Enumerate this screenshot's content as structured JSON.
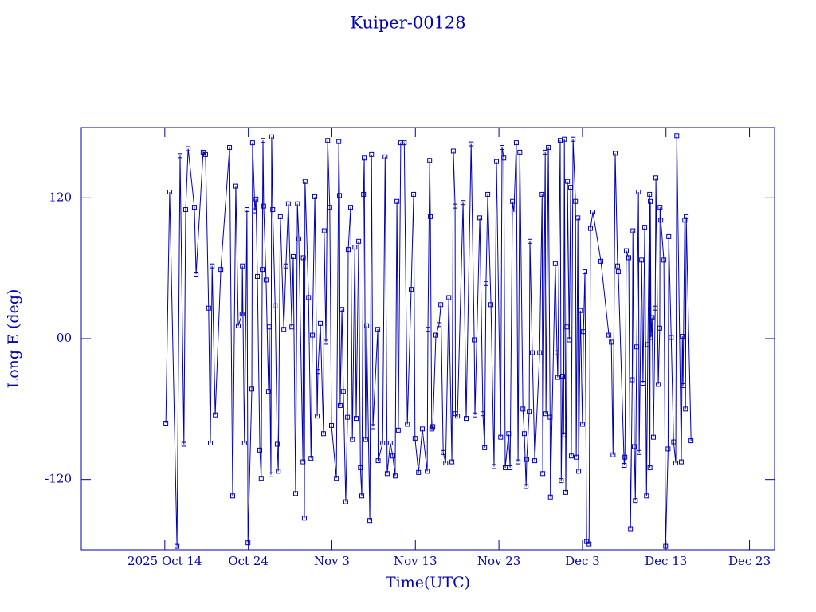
{
  "chart_data": {
    "type": "line",
    "title": "Kuiper-00128",
    "xlabel": "Time(UTC)",
    "ylabel": "Long E (deg)",
    "color": "#0000b4",
    "xlim": [
      "2025-10-04",
      "2025-12-26"
    ],
    "xticks": [
      {
        "value": "2025-10-14",
        "label": "2025 Oct 14"
      },
      {
        "value": "2025-10-24",
        "label": "Oct 24"
      },
      {
        "value": "2025-11-03",
        "label": "Nov 3"
      },
      {
        "value": "2025-11-13",
        "label": "Nov 13"
      },
      {
        "value": "2025-11-23",
        "label": "Nov 23"
      },
      {
        "value": "2025-12-03",
        "label": "Dec 3"
      },
      {
        "value": "2025-12-13",
        "label": "Dec 13"
      },
      {
        "value": "2025-12-23",
        "label": "Dec 23"
      }
    ],
    "ylim": [
      -180,
      180
    ],
    "yticks": [
      -120,
      {
        "value": 0,
        "label": "00"
      },
      120
    ],
    "x": [
      "2025-10-14 03:00",
      "2025-10-14 14:00",
      "2025-10-15 11:00",
      "2025-10-15 20:00",
      "2025-10-16 07:00",
      "2025-10-16 12:00",
      "2025-10-16 19:00",
      "2025-10-17 13:00",
      "2025-10-17 18:00",
      "2025-10-18 14:00",
      "2025-10-18 21:00",
      "2025-10-19 06:00",
      "2025-10-19 11:00",
      "2025-10-19 16:00",
      "2025-10-20 01:00",
      "2025-10-20 17:00",
      "2025-10-21 18:00",
      "2025-10-22 03:00",
      "2025-10-22 12:00",
      "2025-10-22 19:00",
      "2025-10-23 06:00",
      "2025-10-23 07:00",
      "2025-10-23 13:00",
      "2025-10-23 20:00",
      "2025-10-23 23:00",
      "2025-10-24 10:00",
      "2025-10-24 12:00",
      "2025-10-24 19:00",
      "2025-10-24 22:00",
      "2025-10-25 02:00",
      "2025-10-25 09:00",
      "2025-10-25 13:00",
      "2025-10-25 16:00",
      "2025-10-25 18:00",
      "2025-10-25 20:00",
      "2025-10-26 03:00",
      "2025-10-26 10:00",
      "2025-10-26 12:00",
      "2025-10-26 17:00",
      "2025-10-26 19:00",
      "2025-10-26 22:00",
      "2025-10-27 05:00",
      "2025-10-27 11:00",
      "2025-10-27 14:00",
      "2025-10-27 20:00",
      "2025-10-28 06:00",
      "2025-10-28 12:00",
      "2025-10-28 19:00",
      "2025-10-29 05:00",
      "2025-10-29 09:00",
      "2025-10-29 16:00",
      "2025-10-29 21:00",
      "2025-10-30 01:00",
      "2025-10-30 13:00",
      "2025-10-30 14:00",
      "2025-10-30 17:00",
      "2025-10-30 19:00",
      "2025-10-31 05:00",
      "2025-10-31 12:00",
      "2025-10-31 16:00",
      "2025-10-31 23:00",
      "2025-11-01 06:00",
      "2025-11-01 08:00",
      "2025-11-01 15:00",
      "2025-11-02 00:00",
      "2025-11-02 02:00",
      "2025-11-02 07:00",
      "2025-11-02 12:00",
      "2025-11-02 18:00",
      "2025-11-02 23:00",
      "2025-11-03 13:00",
      "2025-11-03 20:00",
      "2025-11-03 22:00",
      "2025-11-04 00:00",
      "2025-11-04 05:00",
      "2025-11-04 09:00",
      "2025-11-04 16:00",
      "2025-11-04 21:00",
      "2025-11-04 23:00",
      "2025-11-05 06:00",
      "2025-11-05 11:00",
      "2025-11-05 18:00",
      "2025-11-05 22:00",
      "2025-11-06 05:00",
      "2025-11-06 10:00",
      "2025-11-06 14:00",
      "2025-11-06 19:00",
      "2025-11-06 21:00",
      "2025-11-07 01:00",
      "2025-11-07 04:00",
      "2025-11-07 13:00",
      "2025-11-07 18:00",
      "2025-11-07 22:00",
      "2025-11-08 12:00",
      "2025-11-08 13:00",
      "2025-11-09 02:00",
      "2025-11-09 09:00",
      "2025-11-09 15:00",
      "2025-11-10 00:00",
      "2025-11-10 07:00",
      "2025-11-10 14:00",
      "2025-11-10 19:00",
      "2025-11-10 23:00",
      "2025-11-11 06:00",
      "2025-11-11 16:00",
      "2025-11-12 01:00",
      "2025-11-12 12:00",
      "2025-11-12 19:00",
      "2025-11-12 23:00",
      "2025-11-13 09:00",
      "2025-11-13 20:00",
      "2025-11-14 10:00",
      "2025-11-14 12:00",
      "2025-11-14 17:00",
      "2025-11-14 19:00",
      "2025-11-14 23:00",
      "2025-11-15 02:00",
      "2025-11-15 11:00",
      "2025-11-15 20:00",
      "2025-11-16 01:00",
      "2025-11-16 08:00",
      "2025-11-16 15:00",
      "2025-11-17 00:00",
      "2025-11-17 09:00",
      "2025-11-17 13:00",
      "2025-11-17 18:00",
      "2025-11-17 19:00",
      "2025-11-18 01:00",
      "2025-11-18 17:00",
      "2025-11-19 02:00",
      "2025-11-19 16:00",
      "2025-11-20 01:00",
      "2025-11-20 03:00",
      "2025-11-20 17:00",
      "2025-11-21 02:00",
      "2025-11-21 07:00",
      "2025-11-21 11:00",
      "2025-11-21 16:00",
      "2025-11-22 01:00",
      "2025-11-22 10:00",
      "2025-11-22 17:00",
      "2025-11-23 05:00",
      "2025-11-23 09:00",
      "2025-11-23 14:00",
      "2025-11-23 18:00",
      "2025-11-24 04:00",
      "2025-11-24 08:00",
      "2025-11-24 15:00",
      "2025-11-24 19:00",
      "2025-11-25 02:00",
      "2025-11-25 07:00",
      "2025-11-25 12:00",
      "2025-11-25 21:00",
      "2025-11-26 01:00",
      "2025-11-26 06:00",
      "2025-11-26 08:00",
      "2025-11-26 15:00",
      "2025-11-26 17:00",
      "2025-11-27 00:00",
      "2025-11-27 07:00",
      "2025-11-27 21:00",
      "2025-11-28 04:00",
      "2025-11-28 06:00",
      "2025-11-28 13:00",
      "2025-11-28 15:00",
      "2025-11-28 22:00",
      "2025-11-29 03:00",
      "2025-11-29 04:00",
      "2025-11-29 18:00",
      "2025-11-29 23:00",
      "2025-11-30 01:00",
      "2025-11-30 08:00",
      "2025-11-30 11:00",
      "2025-11-30 15:00",
      "2025-11-30 18:00",
      "2025-11-30 20:00",
      "2025-12-01 00:00",
      "2025-12-01 03:00",
      "2025-12-01 05:00",
      "2025-12-01 10:00",
      "2025-12-01 14:00",
      "2025-12-01 16:00",
      "2025-12-01 21:00",
      "2025-12-02 04:00",
      "2025-12-02 06:00",
      "2025-12-02 11:00",
      "2025-12-02 13:00",
      "2025-12-02 18:00",
      "2025-12-03 00:00",
      "2025-12-03 03:00",
      "2025-12-03 07:00",
      "2025-12-03 12:00",
      "2025-12-03 19:00",
      "2025-12-03 23:00",
      "2025-12-04 06:00",
      "2025-12-05 05:00",
      "2025-12-06 04:00",
      "2025-12-06 11:00",
      "2025-12-06 16:00",
      "2025-12-06 22:00",
      "2025-12-07 05:00",
      "2025-12-07 07:00",
      "2025-12-08 00:00",
      "2025-12-08 02:00",
      "2025-12-08 06:00",
      "2025-12-08 13:00",
      "2025-12-08 18:00",
      "2025-12-08 23:00",
      "2025-12-09 01:00",
      "2025-12-09 05:00",
      "2025-12-09 08:00",
      "2025-12-09 12:00",
      "2025-12-09 17:00",
      "2025-12-09 19:00",
      "2025-12-10 02:00",
      "2025-12-10 06:00",
      "2025-12-10 11:00",
      "2025-12-10 16:00",
      "2025-12-10 20:00",
      "2025-12-11 01:00",
      "2025-12-11 02:00",
      "2025-12-11 03:00",
      "2025-12-11 05:00",
      "2025-12-11 08:00",
      "2025-12-11 12:00",
      "2025-12-11 17:00",
      "2025-12-11 19:00",
      "2025-12-12 02:00",
      "2025-12-12 06:00",
      "2025-12-12 07:00",
      "2025-12-12 09:00",
      "2025-12-12 18:00",
      "2025-12-12 23:00",
      "2025-12-13 06:00",
      "2025-12-13 08:00",
      "2025-12-13 15:00",
      "2025-12-13 22:00",
      "2025-12-14 04:00",
      "2025-12-14 07:00",
      "2025-12-14 20:00",
      "2025-12-14 23:00",
      "2025-12-15 01:00",
      "2025-12-15 06:00",
      "2025-12-15 08:00",
      "2025-12-15 10:00",
      "2025-12-16 00:00"
    ],
    "values": [
      -72,
      125,
      -177,
      156,
      -90,
      110,
      162,
      112,
      55,
      159,
      157,
      26,
      -89,
      62,
      -65,
      59,
      163,
      -134,
      130,
      11,
      21,
      62,
      -89,
      110,
      -174,
      -43,
      167,
      109,
      119,
      53,
      -95,
      -119,
      59,
      169,
      113,
      50,
      -45,
      10,
      -116,
      172,
      110,
      28,
      -90,
      -113,
      104,
      8,
      62,
      115,
      10,
      70,
      -132,
      115,
      85,
      -105,
      69,
      -153,
      134,
      35,
      -102,
      3,
      121,
      -66,
      -28,
      13,
      -81,
      92,
      -3,
      169,
      112,
      -74,
      -119,
      168,
      122,
      -57,
      25,
      -45,
      -139,
      -67,
      76,
      112,
      -86,
      78,
      -68,
      83,
      -110,
      -134,
      123,
      154,
      -86,
      11,
      -155,
      157,
      -75,
      8,
      -104,
      -89,
      155,
      -115,
      -89,
      -100,
      -117,
      117,
      -78,
      167,
      167,
      -73,
      42,
      123,
      -85,
      -114,
      -77,
      -113,
      8,
      152,
      104,
      -77,
      -75,
      3,
      12,
      29,
      -97,
      -106,
      35,
      -105,
      160,
      113,
      -64,
      -66,
      116,
      -68,
      166,
      -1,
      -65,
      103,
      -64,
      -93,
      47,
      123,
      29,
      -109,
      151,
      -84,
      163,
      154,
      -110,
      -81,
      -110,
      117,
      108,
      167,
      -105,
      159,
      -60,
      -81,
      -126,
      -103,
      -62,
      83,
      -12,
      -104,
      -12,
      123,
      -115,
      159,
      -64,
      163,
      -67,
      -135,
      64,
      -12,
      -33,
      169,
      -121,
      -32,
      -82,
      170,
      -131,
      10,
      134,
      -1,
      129,
      -100,
      170,
      117,
      -101,
      103,
      -113,
      24,
      -73,
      6,
      57,
      -173,
      -175,
      94,
      108,
      66,
      3,
      -3,
      -99,
      158,
      62,
      57,
      -108,
      -101,
      75,
      69,
      -162,
      -35,
      92,
      -92,
      -138,
      -7,
      125,
      -97,
      67,
      -38,
      95,
      -134,
      -5,
      123,
      -110,
      117,
      1,
      18,
      -84,
      26,
      137,
      -39,
      9,
      112,
      101,
      67,
      -177,
      -94,
      87,
      1,
      -88,
      -106,
      173,
      -105,
      2,
      -40,
      101,
      -60,
      104,
      -87
    ]
  }
}
